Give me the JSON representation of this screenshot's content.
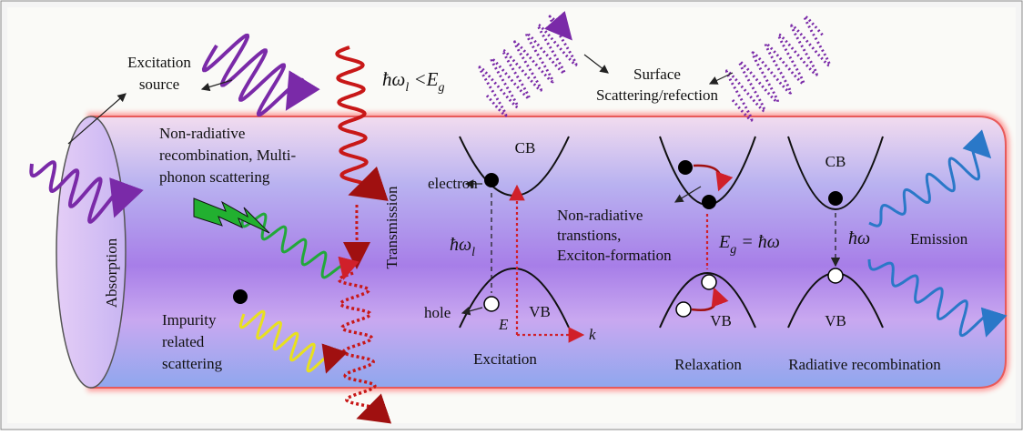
{
  "labels": {
    "excitation_source": [
      "Excitation",
      "source"
    ],
    "photon_condition": [
      "ħω",
      "l",
      " <E",
      "g"
    ],
    "surface_scattering": [
      "Surface",
      "Scattering/refection"
    ],
    "non_radiative_recombination": [
      "Non-radiative",
      "recombination, Multi-",
      "phonon scattering"
    ],
    "transmission": "Transmission",
    "absorption": "Absorption",
    "impurity_scattering": [
      "Impurity",
      "related",
      "scattering"
    ]
  },
  "excitation": {
    "cb": "CB",
    "vb": "VB",
    "electron": "electron",
    "hole": "hole",
    "energy_axis": "E",
    "momentum_axis": "k",
    "photon": [
      "ħω",
      "l"
    ],
    "caption": "Excitation"
  },
  "relaxation": {
    "note": [
      "Non-radiative",
      "transtions,",
      "Exciton-formation"
    ],
    "gap": [
      "E",
      "g",
      " = ħω"
    ],
    "vb": "VB",
    "caption": "Relaxation"
  },
  "radiative": {
    "cb": "CB",
    "photon": "ħω",
    "emission": "Emission",
    "vb": "VB",
    "caption": "Radiative recombination"
  }
}
